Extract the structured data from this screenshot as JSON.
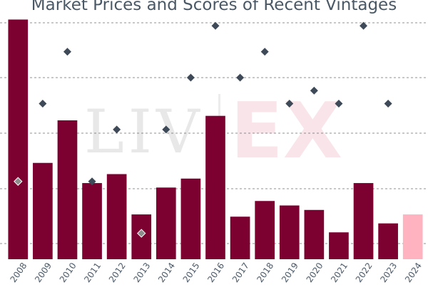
{
  "title": "Market Prices and Scores of Recent Vintages",
  "watermark": {
    "left": "LIV",
    "right": "EX"
  },
  "colors": {
    "bar": "#7c0030",
    "bar_highlight": "#ffb3c1",
    "marker": "#3e4a57",
    "grid": "#555555",
    "text": "#4a5866"
  },
  "chart_data": {
    "type": "bar",
    "title": "Market Prices and Scores of Recent Vintages",
    "categories": [
      "2008",
      "2009",
      "2010",
      "2011",
      "2012",
      "2013",
      "2014",
      "2015",
      "2016",
      "2017",
      "2018",
      "2019",
      "2020",
      "2021",
      "2022",
      "2023",
      "2024"
    ],
    "series": [
      {
        "kind": "bar",
        "values": [
          100,
          36,
          55,
          27,
          31,
          13,
          25,
          29,
          57,
          12,
          19,
          17,
          15,
          5,
          27,
          9,
          13
        ],
        "highlight_last": true
      },
      {
        "kind": "marker",
        "marker": "diamond",
        "values": [
          94,
          97,
          99,
          94,
          96,
          92,
          96,
          98,
          100,
          98,
          99,
          97,
          97.5,
          97,
          100,
          97,
          null
        ]
      }
    ],
    "bar_ylim": [
      -7,
      103
    ],
    "marker_ylim": [
      91,
      100.5
    ],
    "gridlines": 5,
    "grid": true,
    "legend": "none"
  }
}
